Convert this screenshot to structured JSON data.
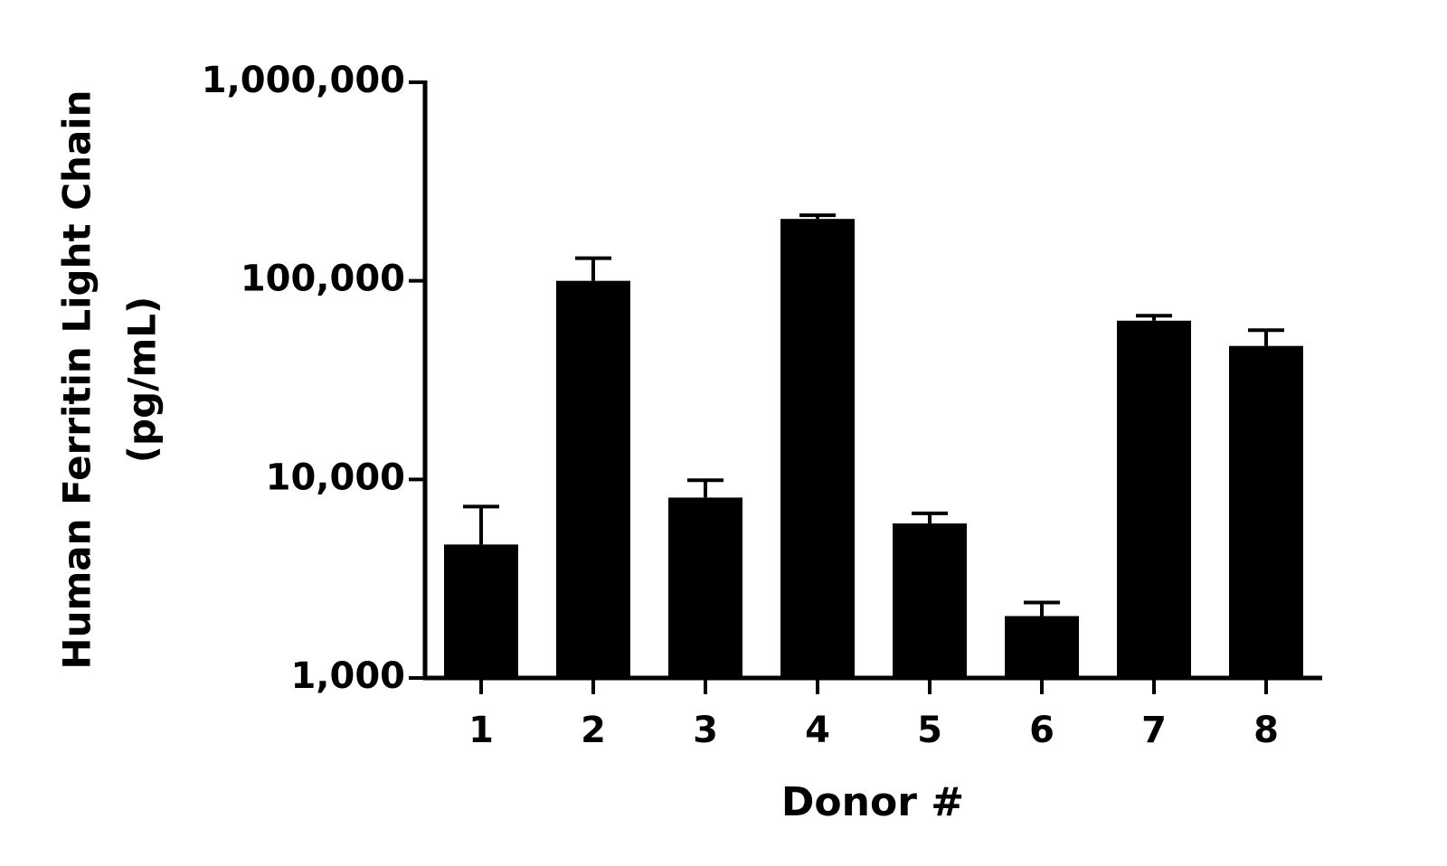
{
  "chart_data": {
    "type": "bar",
    "xlabel": "Donor #",
    "ylabel": [
      "Human Ferritin Light Chain",
      "(pg/mL)"
    ],
    "categories": [
      "1",
      "2",
      "3",
      "4",
      "5",
      "6",
      "7",
      "8"
    ],
    "values": [
      4700,
      100000,
      8100,
      205000,
      6000,
      2050,
      63000,
      47000
    ],
    "errors": [
      2600,
      30000,
      1800,
      9000,
      750,
      350,
      3700,
      9400
    ],
    "color": "#000000",
    "log_scale": true,
    "ylim": [
      1000,
      1000000
    ],
    "yticks": [
      {
        "value": 1000,
        "label": "1,000"
      },
      {
        "value": 10000,
        "label": "10,000"
      },
      {
        "value": 100000,
        "label": "100,000"
      },
      {
        "value": 1000000,
        "label": "1,000,000"
      }
    ],
    "grid": false
  }
}
